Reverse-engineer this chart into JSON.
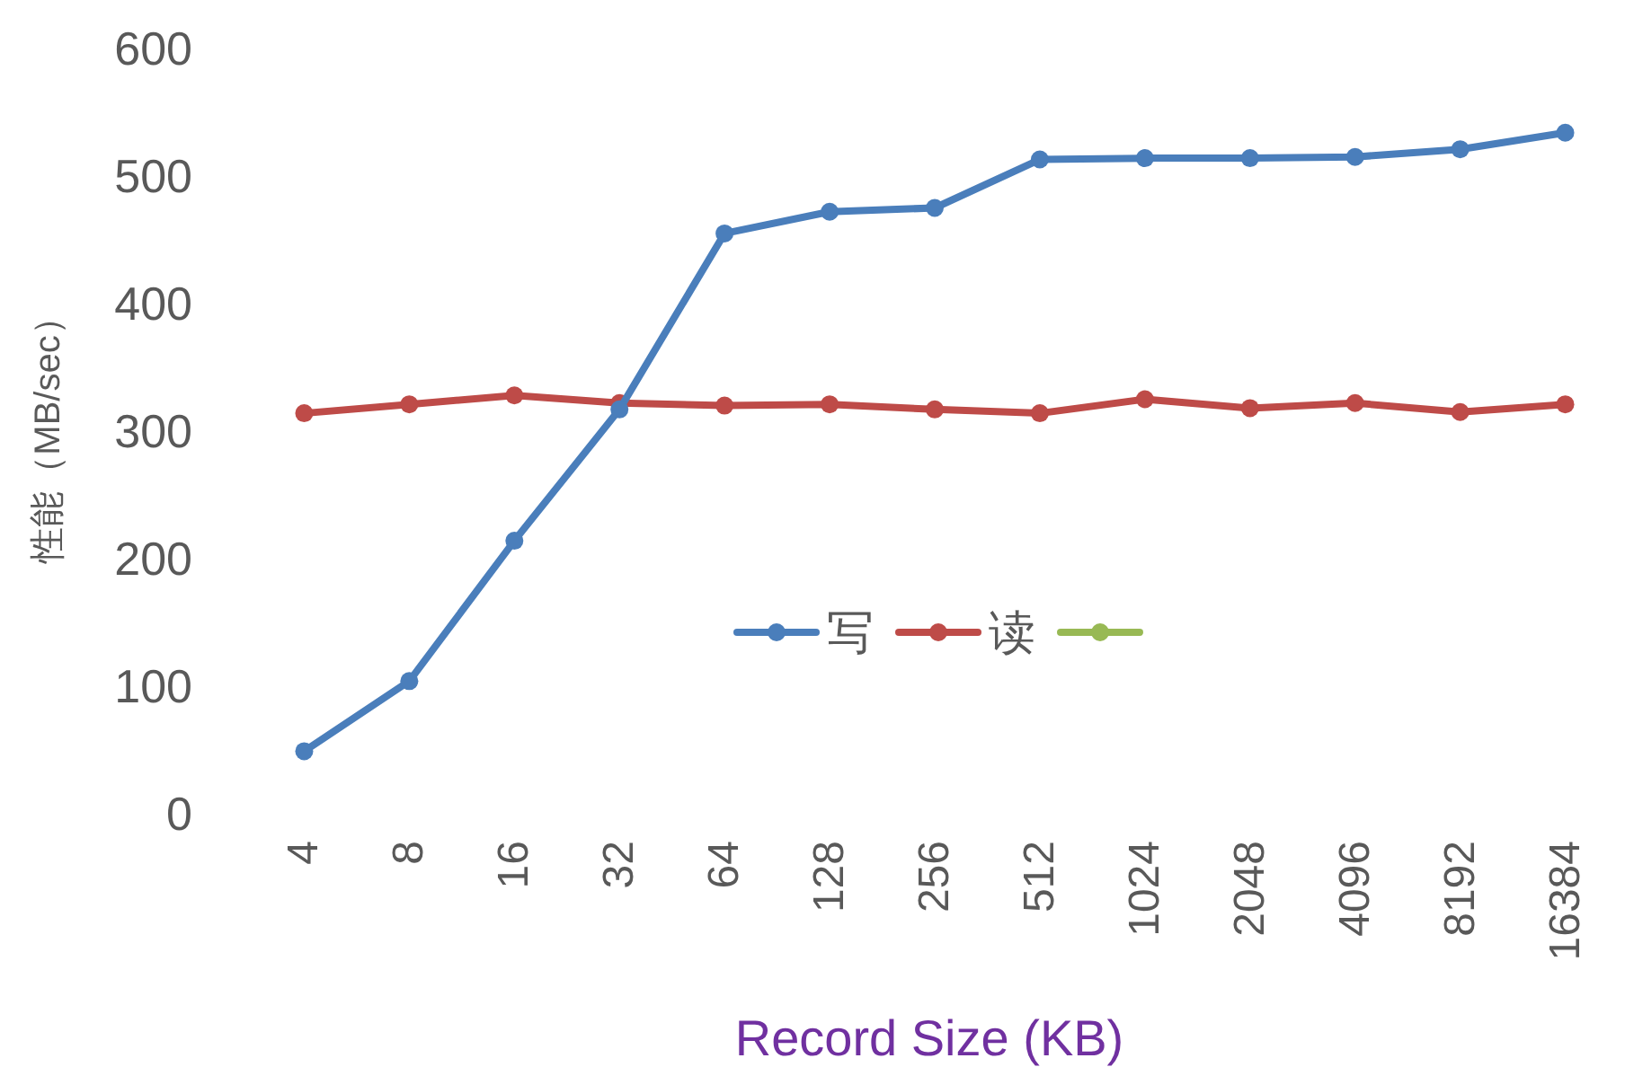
{
  "chart_data": {
    "type": "line",
    "ylabel": "性能（MB/sec）",
    "xlabel": "Record Size (KB)",
    "categories": [
      "4",
      "8",
      "16",
      "32",
      "64",
      "128",
      "256",
      "512",
      "1024",
      "2048",
      "4096",
      "8192",
      "16384"
    ],
    "ylim": [
      0,
      600
    ],
    "yticks": [
      0,
      100,
      200,
      300,
      400,
      500,
      600
    ],
    "grid": false,
    "legend": "center",
    "marker": "circle",
    "line_style": "solid",
    "series": [
      {
        "name": "写",
        "color": "#4a7ebb",
        "values": [
          49,
          104,
          214,
          317,
          455,
          472,
          475,
          513,
          514,
          514,
          515,
          521,
          534
        ]
      },
      {
        "name": "读",
        "color": "#be4b48",
        "values": [
          314,
          321,
          328,
          322,
          320,
          321,
          317,
          314,
          325,
          318,
          322,
          315,
          321
        ]
      },
      {
        "color": "#98b954",
        "values": [
          null,
          null,
          null,
          null,
          null,
          null,
          null,
          null,
          null,
          null,
          null,
          null,
          null
        ]
      }
    ]
  }
}
